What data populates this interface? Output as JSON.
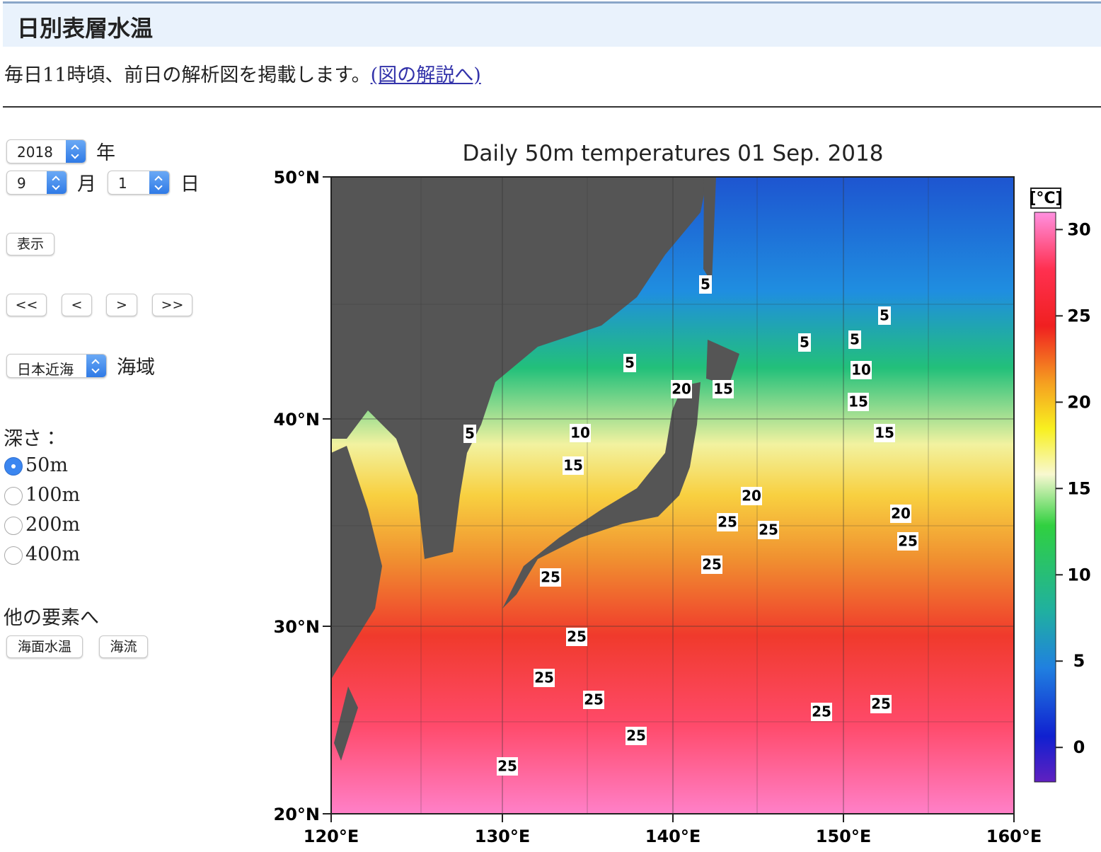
{
  "header": {
    "title": "日別表層水温"
  },
  "intro": {
    "text": "毎日11時頃、前日の解析図を掲載します。",
    "link": "(図の解説へ)"
  },
  "form": {
    "year": "2018",
    "year_unit": "年",
    "month": "9",
    "month_unit": "月",
    "day": "1",
    "day_unit": "日",
    "show_button": "表示",
    "nav": [
      "<<",
      "<",
      ">",
      ">>"
    ],
    "region": "日本近海",
    "region_unit": "海域",
    "depth_label": "深さ：",
    "depths": [
      "50m",
      "100m",
      "200m",
      "400m"
    ],
    "selected_depth": 0,
    "other_label": "他の要素へ",
    "other_buttons": [
      "海面水温",
      "海流"
    ]
  },
  "figure": {
    "title": "Daily 50m temperatures 01 Sep. 2018",
    "lat_ticks": [
      "50°N",
      "40°N",
      "30°N",
      "20°N"
    ],
    "lon_ticks": [
      "120°E",
      "130°E",
      "140°E",
      "150°E",
      "160°E"
    ],
    "colorbar": {
      "unit": "[°C]",
      "range": [
        -2,
        31
      ],
      "ticks": [
        0,
        5,
        10,
        15,
        20,
        25,
        30
      ]
    },
    "contour_labels": [
      "5",
      "5",
      "5",
      "5",
      "5",
      "5",
      "10",
      "15",
      "20",
      "15",
      "15",
      "10",
      "15",
      "20",
      "20",
      "25",
      "25",
      "25",
      "25",
      "25",
      "25",
      "25",
      "25",
      "25",
      "25",
      "25",
      "25"
    ]
  }
}
